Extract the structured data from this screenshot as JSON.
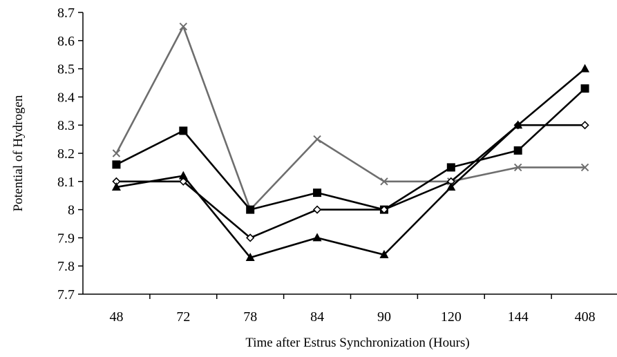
{
  "chart_data": {
    "type": "line",
    "title": "",
    "xlabel": "Time after Estrus Synchronization (Hours)",
    "ylabel": "Potential of  Hydrogen",
    "categories": [
      "48",
      "72",
      "78",
      "84",
      "90",
      "120",
      "144",
      "408"
    ],
    "ylim": [
      7.7,
      8.7
    ],
    "yticks": [
      "7.7",
      "7.8",
      "7.9",
      "8",
      "8.1",
      "8.2",
      "8.3",
      "8.4",
      "8.5",
      "8.6",
      "8.7"
    ],
    "grid": false,
    "legend": "none",
    "series": [
      {
        "marker": "x",
        "color": "#6e6e6e",
        "values": [
          8.2,
          8.65,
          8.0,
          8.25,
          8.1,
          8.1,
          8.15,
          8.15
        ]
      },
      {
        "marker": "square",
        "color": "#000000",
        "values": [
          8.16,
          8.28,
          8.0,
          8.06,
          8.0,
          8.15,
          8.21,
          8.43
        ]
      },
      {
        "marker": "diamond",
        "color": "#000000",
        "values": [
          8.1,
          8.1,
          7.9,
          8.0,
          8.0,
          8.1,
          8.3,
          8.3
        ]
      },
      {
        "marker": "triangle",
        "color": "#000000",
        "values": [
          8.08,
          8.12,
          7.83,
          7.9,
          7.84,
          8.08,
          8.3,
          8.5
        ]
      }
    ]
  }
}
